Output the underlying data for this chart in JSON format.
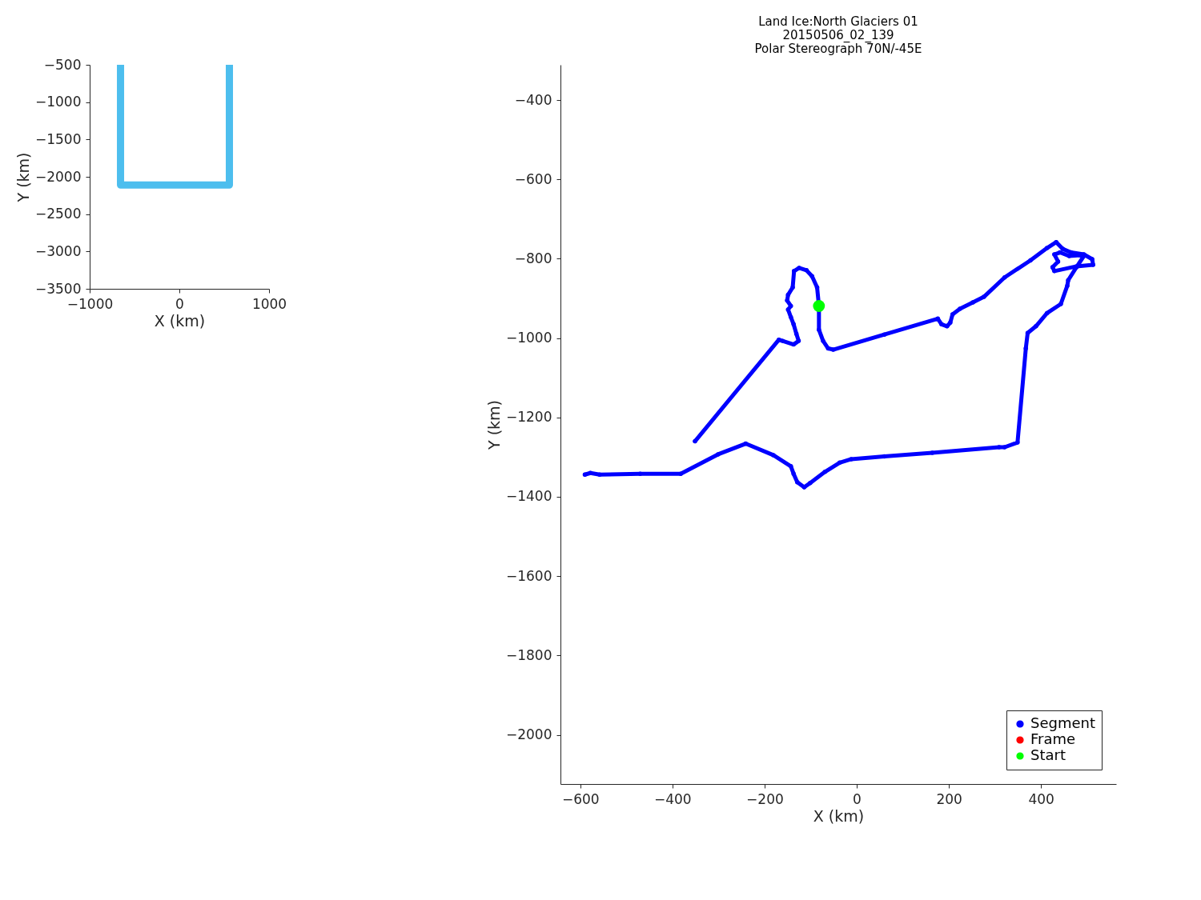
{
  "chart_data": [
    {
      "type": "line",
      "xlabel": "X (km)",
      "ylabel": "Y (km)",
      "xlim": [
        -1000,
        1000
      ],
      "xticks": [
        -1000,
        0,
        1000
      ],
      "ylim": [
        -3500,
        -500
      ],
      "yticks": [
        -3500,
        -3000,
        -2500,
        -2000,
        -1500,
        -1000,
        -500
      ],
      "grid": false,
      "legend": false,
      "series": [
        {
          "color": "#4dbeee",
          "x": [
            -656,
            -656,
            558,
            558
          ],
          "values": [
            -500,
            -2110,
            -2110,
            -500
          ]
        }
      ]
    },
    {
      "type": "line",
      "title": "Land Ice:North Glaciers 01\n20150506_02_139\nPolar Stereograph 70N/-45E",
      "xlabel": "X (km)",
      "ylabel": "Y (km)",
      "xlim": [
        -643,
        563
      ],
      "xticks": [
        -600,
        -400,
        -200,
        0,
        200,
        400
      ],
      "ylim": [
        -2124,
        -311
      ],
      "yticks": [
        -2000,
        -1800,
        -1600,
        -1400,
        -1200,
        -1000,
        -800,
        -600,
        -400
      ],
      "grid": false,
      "legend": "bottom right",
      "series": [
        {
          "name": "Segment",
          "type": "line",
          "color": "#0000ff",
          "x": [
            -351,
            -169,
            -161,
            -137,
            -126,
            -131,
            -137,
            -143,
            -149,
            -143,
            -151,
            -149,
            -139,
            -136,
            -125,
            -109,
            -97,
            -86,
            -82,
            -82,
            -73,
            -62,
            -51,
            60,
            176,
            184,
            196,
            203,
            208,
            224,
            252,
            276,
            321,
            377,
            413,
            433,
            447,
            465,
            493,
            511,
            513,
            477,
            429,
            425,
            437,
            429,
            441,
            461,
            485,
            493,
            477,
            459,
            457,
            443,
            413,
            389,
            371,
            367,
            349,
            321,
            309,
            164,
            60,
            -12,
            -37,
            -69,
            -101,
            -114,
            -129,
            -137,
            -143,
            -181,
            -241,
            -301,
            -382,
            -470,
            -558,
            -578,
            -590
          ],
          "values": [
            -1260,
            -1004,
            -1007,
            -1016,
            -1007,
            -989,
            -965,
            -947,
            -928,
            -919,
            -905,
            -891,
            -872,
            -831,
            -823,
            -829,
            -844,
            -872,
            -919,
            -979,
            -1007,
            -1026,
            -1029,
            -991,
            -951,
            -965,
            -970,
            -961,
            -940,
            -926,
            -910,
            -896,
            -847,
            -804,
            -773,
            -758,
            -775,
            -784,
            -789,
            -801,
            -815,
            -819,
            -831,
            -821,
            -807,
            -789,
            -784,
            -793,
            -791,
            -793,
            -821,
            -854,
            -868,
            -914,
            -937,
            -970,
            -987,
            -1026,
            -1263,
            -1275,
            -1275,
            -1289,
            -1298,
            -1305,
            -1314,
            -1337,
            -1365,
            -1376,
            -1363,
            -1342,
            -1323,
            -1295,
            -1266,
            -1293,
            -1342,
            -1342,
            -1344,
            -1340,
            -1344
          ]
        },
        {
          "name": "Frame",
          "type": "scatter",
          "color": "#ff0000"
        },
        {
          "name": "Start",
          "type": "scatter",
          "color": "#00ff00",
          "x": [
            -82
          ],
          "values": [
            -919
          ]
        }
      ]
    }
  ]
}
